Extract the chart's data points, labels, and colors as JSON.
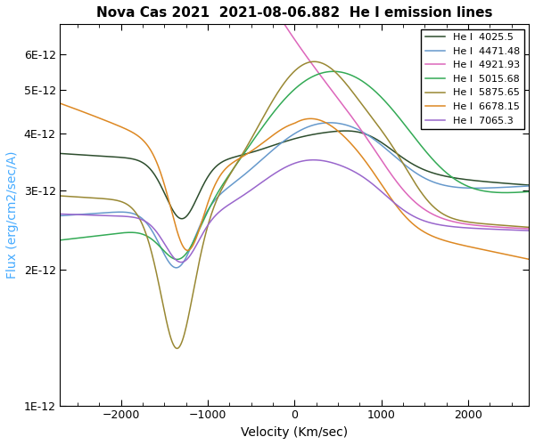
{
  "title": "Nova Cas 2021  2021-08-06.882  He I emission lines",
  "xlabel": "Velocity (Km/sec)",
  "ylabel": "Flux (erg/cm2/sec/A)",
  "xlim": [
    -2700,
    2700
  ],
  "ylim": [
    1e-12,
    7e-12
  ],
  "lines": [
    {
      "label": "He I  4025.5",
      "color": "#2d4d2d"
    },
    {
      "label": "He I  4471.48",
      "color": "#6699cc"
    },
    {
      "label": "He I  4921.93",
      "color": "#dd66bb"
    },
    {
      "label": "He I  5015.68",
      "color": "#33aa55"
    },
    {
      "label": "He I  5875.65",
      "color": "#998833"
    },
    {
      "label": "He I  6678.15",
      "color": "#dd8822"
    },
    {
      "label": "He I  7065.3",
      "color": "#9966cc"
    }
  ],
  "title_fontsize": 11,
  "label_fontsize": 10,
  "tick_fontsize": 9,
  "legend_fontsize": 8
}
